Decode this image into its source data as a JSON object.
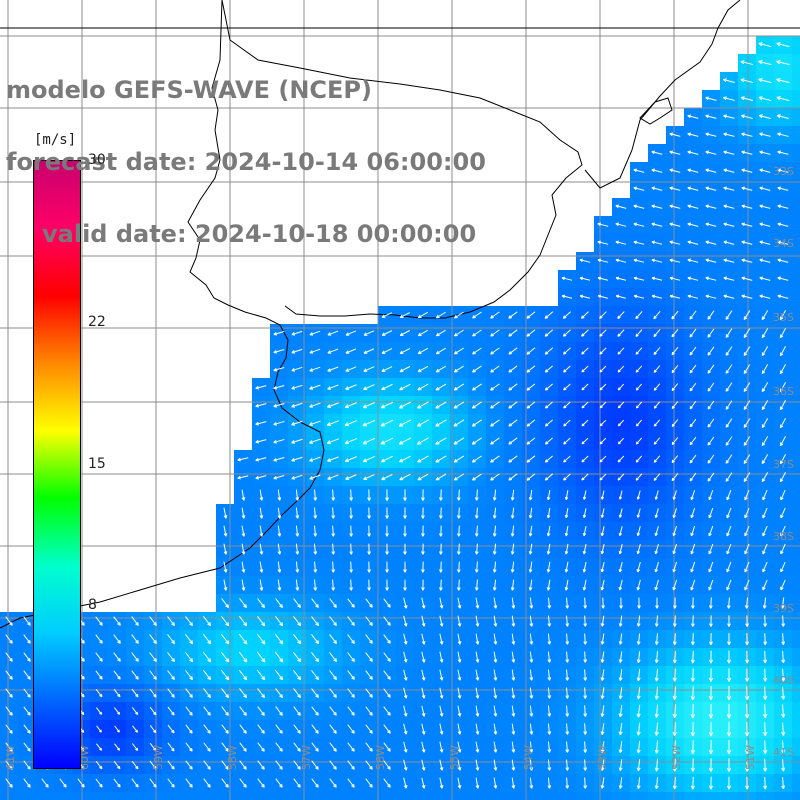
{
  "title": {
    "line1": "modelo GEFS-WAVE (NCEP)",
    "line2": "forecast date: 2024-10-14 06:00:00",
    "line3": "valid date: 2024-10-18 00:00:00"
  },
  "colorbar": {
    "unit": "[m/s]",
    "ticks": [
      "30",
      "22",
      "15",
      "8"
    ],
    "tick_values": [
      30,
      22,
      15,
      8
    ],
    "range": [
      0,
      30
    ],
    "colors": [
      "#0000ff",
      "#0066ff",
      "#00ccff",
      "#00ffcc",
      "#00ff00",
      "#ffff00",
      "#ff8800",
      "#ff0000",
      "#ff0066",
      "#c8006e"
    ]
  },
  "map": {
    "lat_labels": [
      "33S",
      "34S",
      "35S",
      "36S",
      "37S",
      "38S",
      "39S",
      "40S",
      "41S"
    ],
    "lat_values": [
      33,
      34,
      35,
      36,
      37,
      38,
      39,
      40,
      41
    ],
    "lon_labels": [
      "61W",
      "60W",
      "59W",
      "58W",
      "57W",
      "56W",
      "55W",
      "54W",
      "53W",
      "52W",
      "51W"
    ],
    "lon_values": [
      61,
      60,
      59,
      58,
      57,
      56,
      55,
      54,
      53,
      52,
      51
    ],
    "colors": {
      "grid": "#8c8c8c",
      "land": "#ffffff",
      "coast": "#000000",
      "arrow": "#ffffff",
      "label": "#8c8c8c"
    }
  }
}
